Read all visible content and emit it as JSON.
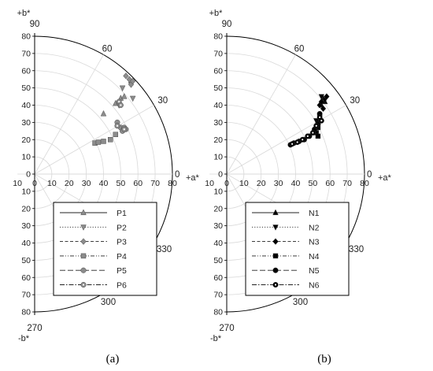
{
  "chart_data": [
    {
      "type": "scatter",
      "coordinate_system": "polar-semicircle",
      "panel_label": "(a)",
      "radial_axis": {
        "range": [
          0,
          80
        ],
        "ticks": [
          0,
          10,
          20,
          30,
          40,
          50,
          60,
          70,
          80
        ]
      },
      "vertical_ticks": [
        "80",
        "70",
        "60",
        "50",
        "40",
        "30",
        "20",
        "10",
        "0",
        "10",
        "20",
        "30",
        "40",
        "50",
        "60",
        "70",
        "80"
      ],
      "horizontal_ticks": [
        "10",
        "0",
        "10",
        "20",
        "30",
        "40",
        "50",
        "60",
        "70",
        "80"
      ],
      "angle_labels": [
        "90",
        "60",
        "30",
        "0",
        "330",
        "300",
        "270"
      ],
      "axis_titles": {
        "top": "+b*",
        "right": "+a*",
        "bottom": "-b*"
      },
      "grid": true,
      "legend_position": "lower-left-inside",
      "marker_color": "#8c8c8c",
      "series": [
        {
          "name": "P1",
          "marker": "triangle-up",
          "dash": "solid",
          "points": [
            [
              40,
              35
            ],
            [
              47,
              41
            ],
            [
              50,
              44
            ],
            [
              52,
              45
            ]
          ]
        },
        {
          "name": "P2",
          "marker": "triangle-down",
          "dash": "dotted",
          "points": [
            [
              49,
              40
            ],
            [
              51,
              50
            ],
            [
              57,
              44
            ],
            [
              56,
              52
            ]
          ]
        },
        {
          "name": "P3",
          "marker": "diamond",
          "dash": "dashed",
          "points": [
            [
              53,
              57
            ],
            [
              55,
              55
            ],
            [
              56,
              52
            ],
            [
              57,
              54
            ]
          ]
        },
        {
          "name": "P4",
          "marker": "square",
          "dash": "dash-dot-dot",
          "points": [
            [
              35,
              18
            ],
            [
              37,
              18.5
            ],
            [
              40,
              19
            ],
            [
              44,
              20
            ],
            [
              47,
              23
            ]
          ]
        },
        {
          "name": "P5",
          "marker": "circle",
          "dash": "long-dash",
          "points": [
            [
              48,
              30
            ],
            [
              50,
              27
            ],
            [
              52,
              27
            ],
            [
              51,
              25
            ],
            [
              53,
              26
            ]
          ]
        },
        {
          "name": "P6",
          "marker": "circle-dot",
          "dash": "dash-dot",
          "points": [
            [
              48,
              28
            ],
            [
              49,
              42
            ],
            [
              50,
              40
            ],
            [
              52,
              26
            ]
          ]
        }
      ]
    },
    {
      "type": "scatter",
      "coordinate_system": "polar-semicircle",
      "panel_label": "(b)",
      "radial_axis": {
        "range": [
          0,
          80
        ],
        "ticks": [
          0,
          10,
          20,
          30,
          40,
          50,
          60,
          70,
          80
        ]
      },
      "vertical_ticks": [
        "80",
        "70",
        "60",
        "50",
        "40",
        "30",
        "20",
        "10",
        "0",
        "10",
        "20",
        "30",
        "40",
        "50",
        "60",
        "70",
        "80"
      ],
      "horizontal_ticks": [
        "10",
        "0",
        "10",
        "20",
        "30",
        "40",
        "50",
        "60",
        "70",
        "80"
      ],
      "angle_labels": [
        "90",
        "60",
        "30",
        "0",
        "330",
        "300",
        "270"
      ],
      "axis_titles": {
        "top": "+b*",
        "right": "+a*",
        "bottom": "-b*"
      },
      "grid": true,
      "legend_position": "lower-left-inside",
      "marker_color": "#000000",
      "series": [
        {
          "name": "N1",
          "marker": "triangle-up",
          "dash": "solid",
          "points": [
            [
              55,
              40
            ],
            [
              56,
              44
            ],
            [
              57,
              42
            ]
          ]
        },
        {
          "name": "N2",
          "marker": "triangle-down",
          "dash": "dotted",
          "points": [
            [
              55,
              45
            ],
            [
              57,
              43
            ],
            [
              52,
              31
            ],
            [
              54,
              33
            ]
          ]
        },
        {
          "name": "N3",
          "marker": "diamond",
          "dash": "dashed",
          "points": [
            [
              54,
              40
            ],
            [
              56,
              38
            ],
            [
              58,
              45
            ],
            [
              55,
              42
            ]
          ]
        },
        {
          "name": "N4",
          "marker": "square",
          "dash": "dash-dot-dot",
          "points": [
            [
              52,
              24
            ],
            [
              53,
              22
            ],
            [
              53,
              27
            ]
          ]
        },
        {
          "name": "N5",
          "marker": "circle",
          "dash": "long-dash",
          "points": [
            [
              37,
              17
            ],
            [
              39,
              18
            ],
            [
              42,
              19
            ],
            [
              45,
              20
            ],
            [
              48,
              22
            ],
            [
              51,
              26
            ],
            [
              53,
              30
            ],
            [
              54,
              35
            ],
            [
              53,
              29
            ]
          ]
        },
        {
          "name": "N6",
          "marker": "circle-dot",
          "dash": "dash-dot",
          "points": [
            [
              38,
              17.5
            ],
            [
              41,
              18.5
            ],
            [
              44,
              20
            ],
            [
              47,
              22
            ],
            [
              50,
              24
            ],
            [
              52,
              28
            ],
            [
              55,
              31
            ],
            [
              54,
              33
            ]
          ]
        }
      ]
    }
  ]
}
